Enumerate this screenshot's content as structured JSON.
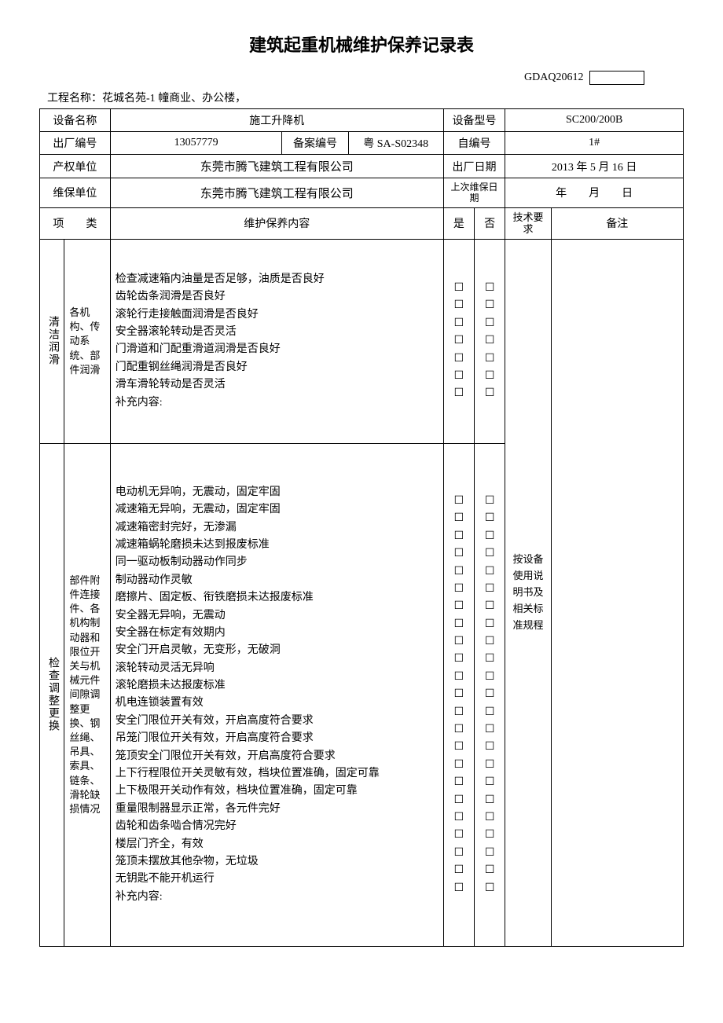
{
  "title": "建筑起重机械维护保养记录表",
  "form_code": "GDAQ20612",
  "project_label": "工程名称：",
  "project_name": "花城名苑-1 幢商业、办公楼，",
  "rows": {
    "equip_name_lbl": "设备名称",
    "equip_name": "施工升降机",
    "equip_model_lbl": "设备型号",
    "equip_model": "SC200/200B",
    "factory_no_lbl": "出厂编号",
    "factory_no": "13057779",
    "record_no_lbl": "备案编号",
    "record_no": "粤 SA-S02348",
    "self_no_lbl": "自编号",
    "self_no": "1#",
    "owner_lbl": "产权单位",
    "owner": "东莞市腾飞建筑工程有限公司",
    "factory_date_lbl": "出厂日期",
    "factory_date": "2013 年 5 月 16 日",
    "maint_unit_lbl": "维保单位",
    "maint_unit": "东莞市腾飞建筑工程有限公司",
    "last_maint_lbl": "上次维保日　　期",
    "last_maint_date": "年　　月　　日",
    "cat_lbl": "项　　类",
    "content_lbl": "维护保养内容",
    "yes_lbl": "是",
    "no_lbl": "否",
    "tech_lbl": "技术要求",
    "remark_lbl": "备注"
  },
  "section1": {
    "cat": "清洁润滑",
    "subcat": "各机构、传动系统、部件润滑",
    "items": [
      "检查减速箱内油量是否足够，油质是否良好",
      "齿轮齿条润滑是否良好",
      "滚轮行走接触面润滑是否良好",
      "安全器滚轮转动是否灵活",
      "门滑道和门配重滑道润滑是否良好",
      "门配重钢丝绳润滑是否良好",
      "滑车滑轮转动是否灵活"
    ],
    "supp": "补充内容:"
  },
  "section2": {
    "cat": "检查调整更换",
    "subcat": "部件附件连接件、各机构制动器和限位开关与机械元件间隙调整更换、钢丝绳、吊具、索具、链条、滑轮缺损情况",
    "items": [
      "电动机无异响，无震动，固定牢固",
      "减速箱无异响，无震动，固定牢固",
      "减速箱密封完好，无渗漏",
      "减速箱蜗轮磨损未达到报废标准",
      "同一驱动板制动器动作同步",
      "制动器动作灵敏",
      "磨擦片、固定板、衔铁磨损未达报废标准",
      "安全器无异响，无震动",
      "安全器在标定有效期内",
      "安全门开启灵敏，无变形，无破洞",
      "滚轮转动灵活无异响",
      "滚轮磨损未达报废标准",
      "机电连锁装置有效",
      "安全门限位开关有效，开启高度符合要求",
      "吊笼门限位开关有效，开启高度符合要求",
      "笼顶安全门限位开关有效，开启高度符合要求",
      "上下行程限位开关灵敏有效，档块位置准确，固定可靠",
      "上下极限开关动作有效，档块位置准确，固定可靠",
      "重量限制器显示正常，各元件完好",
      "齿轮和齿条啮合情况完好",
      "楼层门齐全，有效",
      "笼顶未摆放其他杂物，无垃圾",
      "无钥匙不能开机运行"
    ],
    "supp": "补充内容:"
  },
  "tech_req": "按设备使用说明书及相关标准规程",
  "checkbox": "☐"
}
